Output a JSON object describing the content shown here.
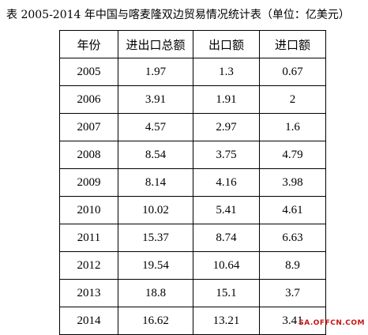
{
  "caption": "表  2005-2014 年中国与喀麦隆双边贸易情况统计表（单位：亿美元）",
  "table": {
    "headers": [
      "年份",
      "进出口总额",
      "出口额",
      "进口额"
    ],
    "rows": [
      [
        "2005",
        "1.97",
        "1.3",
        "0.67"
      ],
      [
        "2006",
        "3.91",
        "1.91",
        "2"
      ],
      [
        "2007",
        "4.57",
        "2.97",
        "1.6"
      ],
      [
        "2008",
        "8.54",
        "3.75",
        "4.79"
      ],
      [
        "2009",
        "8.14",
        "4.16",
        "3.98"
      ],
      [
        "2010",
        "10.02",
        "5.41",
        "4.61"
      ],
      [
        "2011",
        "15.37",
        "8.74",
        "6.63"
      ],
      [
        "2012",
        "19.54",
        "10.64",
        "8.9"
      ],
      [
        "2013",
        "18.8",
        "15.1",
        "3.7"
      ],
      [
        "2014",
        "16.62",
        "13.21",
        "3.41"
      ]
    ]
  },
  "watermark": "SA.OFFCN.COM",
  "colors": {
    "watermark": "#c81414",
    "border": "#000000"
  }
}
